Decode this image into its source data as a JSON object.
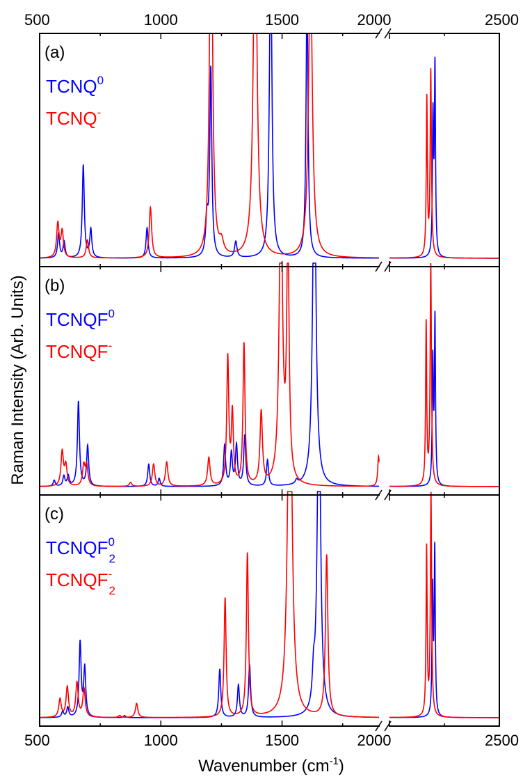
{
  "chart_data": {
    "type": "line",
    "ylabel": "Raman Intensity (Arb. Units)",
    "xlabel": "Wavenumber (cm",
    "xlabel_sup": "-1",
    "xlabel_tail": ")",
    "x_axis": {
      "segments": [
        {
          "range": [
            500,
            1900
          ],
          "ticks": [
            500,
            1000,
            1500
          ]
        },
        {
          "range": [
            2000,
            2500
          ],
          "ticks": [
            2000,
            2500
          ]
        }
      ],
      "top_labels": [
        "500",
        "1000",
        "1500",
        "2000",
        "2500"
      ],
      "bottom_labels": [
        "500",
        "1000",
        "1500",
        "2000",
        "2500"
      ],
      "break_between": [
        1900,
        2000
      ]
    },
    "colors": {
      "neutral": "#0000ff",
      "anion": "#ff0000",
      "axes": "#000000"
    },
    "panels": [
      {
        "label": "(a)",
        "legend": [
          {
            "base": "TCNQ",
            "sup": "0",
            "sub": "",
            "color": "#0000ff"
          },
          {
            "base": "TCNQ",
            "sup": "-",
            "sub": "",
            "color": "#ff0000"
          }
        ],
        "series": [
          {
            "name": "TCNQ0",
            "color": "#0000ff",
            "peaks": [
              [
                578,
                0.12,
                5
              ],
              [
                601,
                0.08,
                5
              ],
              [
                680,
                0.46,
                5
              ],
              [
                711,
                0.14,
                5
              ],
              [
                943,
                0.15,
                5
              ],
              [
                1190,
                0.18,
                6
              ],
              [
                1206,
                0.93,
                5
              ],
              [
                1309,
                0.08,
                6
              ],
              [
                1453,
                1.6,
                6
              ],
              [
                1603,
                1.3,
                5
              ],
              [
                2198,
                0.68,
                3
              ],
              [
                2207,
                0.93,
                3
              ]
            ]
          },
          {
            "name": "TCNQ-",
            "color": "#ff0000",
            "peaks": [
              [
                575,
                0.17,
                6
              ],
              [
                593,
                0.13,
                6
              ],
              [
                697,
                0.09,
                6
              ],
              [
                957,
                0.25,
                6
              ],
              [
                1207,
                2.0,
                7
              ],
              [
                1250,
                0.06,
                10
              ],
              [
                1389,
                1.8,
                9
              ],
              [
                1617,
                1.5,
                9
              ],
              [
                2170,
                0.78,
                3
              ],
              [
                2188,
                0.92,
                3.5
              ]
            ]
          }
        ]
      },
      {
        "label": "(b)",
        "legend": [
          {
            "base": "TCNQF",
            "sup": "0",
            "sub": "",
            "color": "#0000ff"
          },
          {
            "base": "TCNQF",
            "sup": "-",
            "sub": "",
            "color": "#ff0000"
          }
        ],
        "series": [
          {
            "name": "TCNQF0",
            "color": "#0000ff",
            "peaks": [
              [
                560,
                0.03,
                5
              ],
              [
                600,
                0.05,
                5
              ],
              [
                618,
                0.05,
                5
              ],
              [
                660,
                0.42,
                5
              ],
              [
                698,
                0.2,
                5
              ],
              [
                950,
                0.11,
                5
              ],
              [
                993,
                0.04,
                5
              ],
              [
                1263,
                0.2,
                5
              ],
              [
                1291,
                0.16,
                5
              ],
              [
                1312,
                0.2,
                5
              ],
              [
                1346,
                0.25,
                5
              ],
              [
                1440,
                0.13,
                5
              ],
              [
                1560,
                0.02,
                6
              ],
              [
                1633,
                1.7,
                8
              ],
              [
                2197,
                0.61,
                3
              ],
              [
                2207,
                0.82,
                3
              ]
            ]
          },
          {
            "name": "TCNQF-",
            "color": "#ff0000",
            "peaks": [
              [
                593,
                0.17,
                6
              ],
              [
                608,
                0.1,
                6
              ],
              [
                682,
                0.1,
                6
              ],
              [
                694,
                0.1,
                6
              ],
              [
                875,
                0.02,
                6
              ],
              [
                970,
                0.11,
                6
              ],
              [
                1024,
                0.12,
                6
              ],
              [
                1198,
                0.14,
                6
              ],
              [
                1276,
                0.63,
                5
              ],
              [
                1295,
                0.35,
                5
              ],
              [
                1343,
                0.7,
                5
              ],
              [
                1414,
                0.36,
                6
              ],
              [
                1495,
                1.5,
                8
              ],
              [
                1524,
                1.2,
                6
              ],
              [
                1898,
                0.15,
                4
              ],
              [
                2167,
                0.8,
                3
              ],
              [
                2188,
                1.1,
                3.5
              ]
            ]
          }
        ]
      },
      {
        "label": "(c)",
        "legend": [
          {
            "base": "TCNQF",
            "sup": "0",
            "sub": "2",
            "color": "#0000ff"
          },
          {
            "base": "TCNQF",
            "sup": "-",
            "sub": "2",
            "color": "#ff0000"
          }
        ],
        "series": [
          {
            "name": "TCNQF2 0",
            "color": "#0000ff",
            "peaks": [
              [
                595,
                0.03,
                5
              ],
              [
                616,
                0.05,
                5
              ],
              [
                667,
                0.37,
                5
              ],
              [
                686,
                0.24,
                5
              ],
              [
                850,
                0.01,
                5
              ],
              [
                1243,
                0.24,
                5
              ],
              [
                1320,
                0.16,
                5
              ],
              [
                1366,
                0.26,
                5
              ],
              [
                1630,
                0.15,
                6
              ],
              [
                1652,
                1.7,
                8
              ],
              [
                2196,
                0.62,
                3
              ],
              [
                2206,
                0.82,
                3
              ]
            ]
          },
          {
            "name": "TCNQF2 -",
            "color": "#ff0000",
            "peaks": [
              [
                584,
                0.09,
                6
              ],
              [
                614,
                0.15,
                6
              ],
              [
                654,
                0.17,
                6
              ],
              [
                683,
                0.14,
                6
              ],
              [
                830,
                0.01,
                6
              ],
              [
                900,
                0.07,
                6
              ],
              [
                1265,
                0.59,
                5
              ],
              [
                1357,
                0.81,
                5
              ],
              [
                1532,
                2.0,
                10
              ],
              [
                1684,
                0.8,
                6
              ],
              [
                2169,
                0.83,
                3
              ],
              [
                2189,
                1.1,
                3.5
              ]
            ]
          }
        ]
      }
    ]
  }
}
